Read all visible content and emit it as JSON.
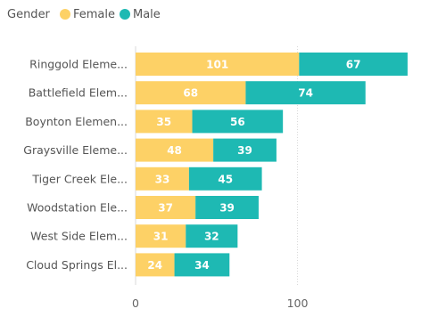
{
  "chart_data": {
    "type": "bar",
    "orientation": "horizontal",
    "stacked": true,
    "legend": {
      "title": "Gender",
      "position": "top-left"
    },
    "categories": [
      "Ringgold Eleme...",
      "Battlefield Elem...",
      "Boynton Elemen...",
      "Graysville Eleme...",
      "Tiger Creek Ele...",
      "Woodstation Ele...",
      "West Side Elem...",
      "Cloud Springs El..."
    ],
    "series": [
      {
        "name": "Female",
        "color": "#FDD166",
        "values": [
          101,
          68,
          35,
          48,
          33,
          37,
          31,
          24
        ]
      },
      {
        "name": "Male",
        "color": "#1EB9B3",
        "values": [
          67,
          74,
          56,
          39,
          45,
          39,
          32,
          34
        ]
      }
    ],
    "x_ticks": [
      0,
      100
    ],
    "x_tick_labels": [
      "0",
      "100"
    ],
    "xlim": [
      0,
      170
    ],
    "grid": true
  }
}
